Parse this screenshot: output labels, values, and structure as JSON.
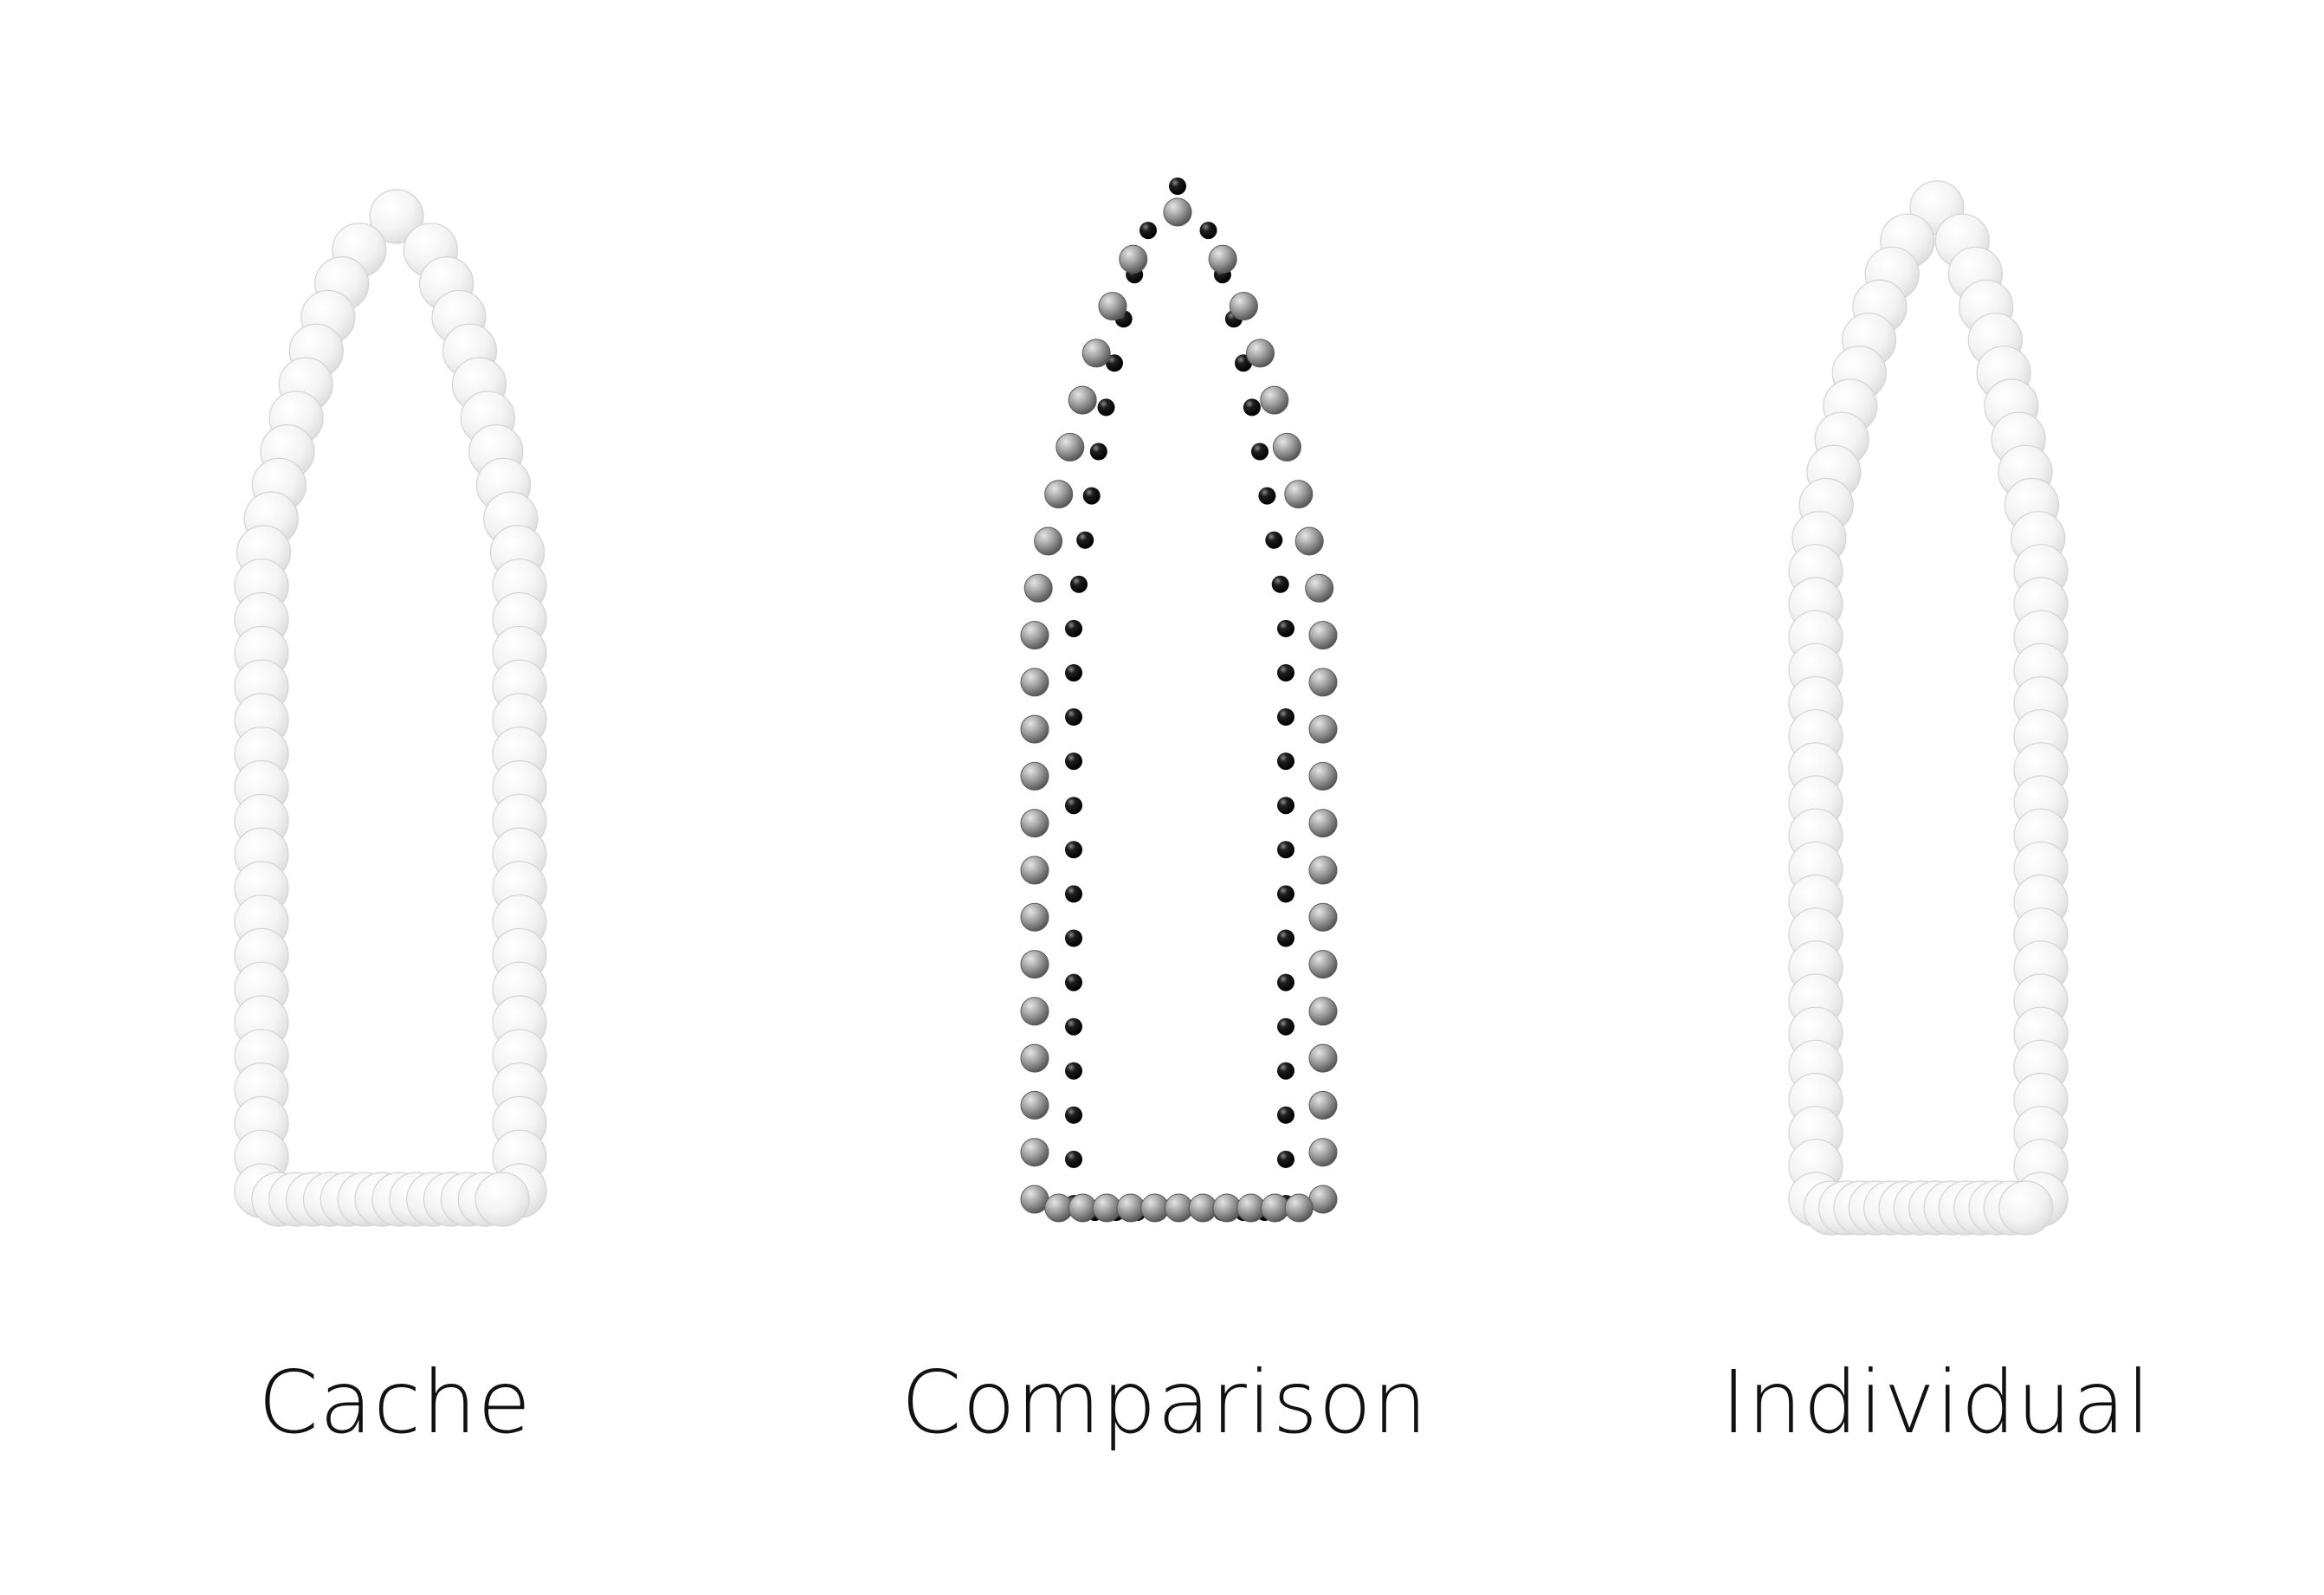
{
  "panels": [
    {
      "id": "cache",
      "label": "Cache",
      "style": "light"
    },
    {
      "id": "comparison",
      "label": "Comparison",
      "style": "overlay"
    },
    {
      "id": "individual",
      "label": "Individual",
      "style": "light"
    }
  ],
  "colors": {
    "background": "#ffffff",
    "light_sphere": "#f2f2f2",
    "light_sphere_edge": "#d4d4d4",
    "gray_sphere": "#9a9a9a",
    "dark_sphere": "#111111",
    "label_text": "#111111"
  }
}
